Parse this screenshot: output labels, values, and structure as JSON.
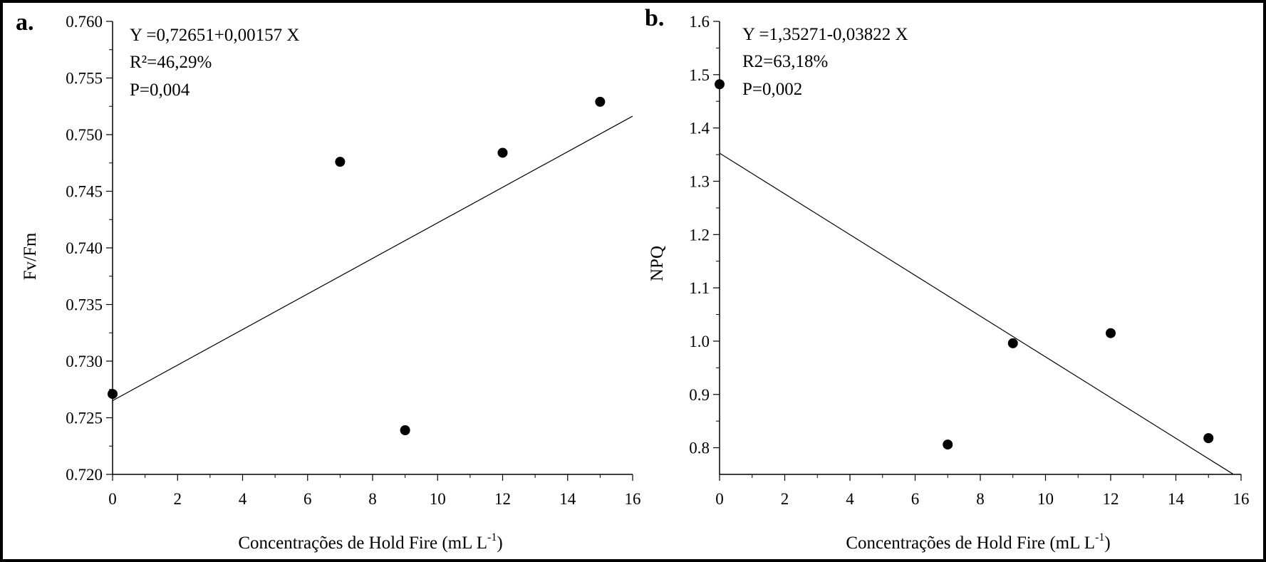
{
  "chart_data": [
    {
      "type": "scatter",
      "panel_label": "a.",
      "xlabel": "Concentrações de Hold Fire (mL L",
      "xlabel_sup": "-1",
      "xlabel_end": ")",
      "ylabel": "Fv/Fm",
      "xlim": [
        0,
        16
      ],
      "ylim": [
        0.72,
        0.76
      ],
      "xticks": [
        "0",
        "2",
        "4",
        "6",
        "8",
        "10",
        "12",
        "14",
        "16"
      ],
      "yticks": [
        "0.720",
        "0.725",
        "0.730",
        "0.735",
        "0.740",
        "0.745",
        "0.750",
        "0.755",
        "0.760"
      ],
      "points": [
        {
          "x": 0,
          "y": 0.7271
        },
        {
          "x": 7,
          "y": 0.7476
        },
        {
          "x": 9,
          "y": 0.7239
        },
        {
          "x": 12,
          "y": 0.7484
        },
        {
          "x": 15,
          "y": 0.7529
        }
      ],
      "fit": {
        "intercept": 0.72651,
        "slope": 0.00157,
        "x_range": [
          0,
          16
        ]
      },
      "annotations": [
        "Y =0,72651+0,00157 X",
        "R²=46,29%",
        "P=0,004"
      ]
    },
    {
      "type": "scatter",
      "panel_label": "b.",
      "xlabel": "Concentrações de Hold Fire (mL L",
      "xlabel_sup": "-1",
      "xlabel_end": ")",
      "ylabel": "NPQ",
      "xlim": [
        0,
        16
      ],
      "ylim": [
        0.75,
        1.6
      ],
      "xticks": [
        "0",
        "2",
        "4",
        "6",
        "8",
        "10",
        "12",
        "14",
        "16"
      ],
      "yticks": [
        "0.8",
        "0.9",
        "1.0",
        "1.1",
        "1.2",
        "1.3",
        "1.4",
        "1.5",
        "1.6"
      ],
      "points": [
        {
          "x": 0,
          "y": 1.482
        },
        {
          "x": 7,
          "y": 0.806
        },
        {
          "x": 9,
          "y": 0.996
        },
        {
          "x": 12,
          "y": 1.015
        },
        {
          "x": 15,
          "y": 0.818
        }
      ],
      "fit": {
        "intercept": 1.35271,
        "slope": -0.03822,
        "x_range": [
          0,
          15.75
        ]
      },
      "annotations": [
        "Y =1,35271-0,03822 X",
        "R2=63,18%",
        "P=0,002"
      ]
    }
  ]
}
